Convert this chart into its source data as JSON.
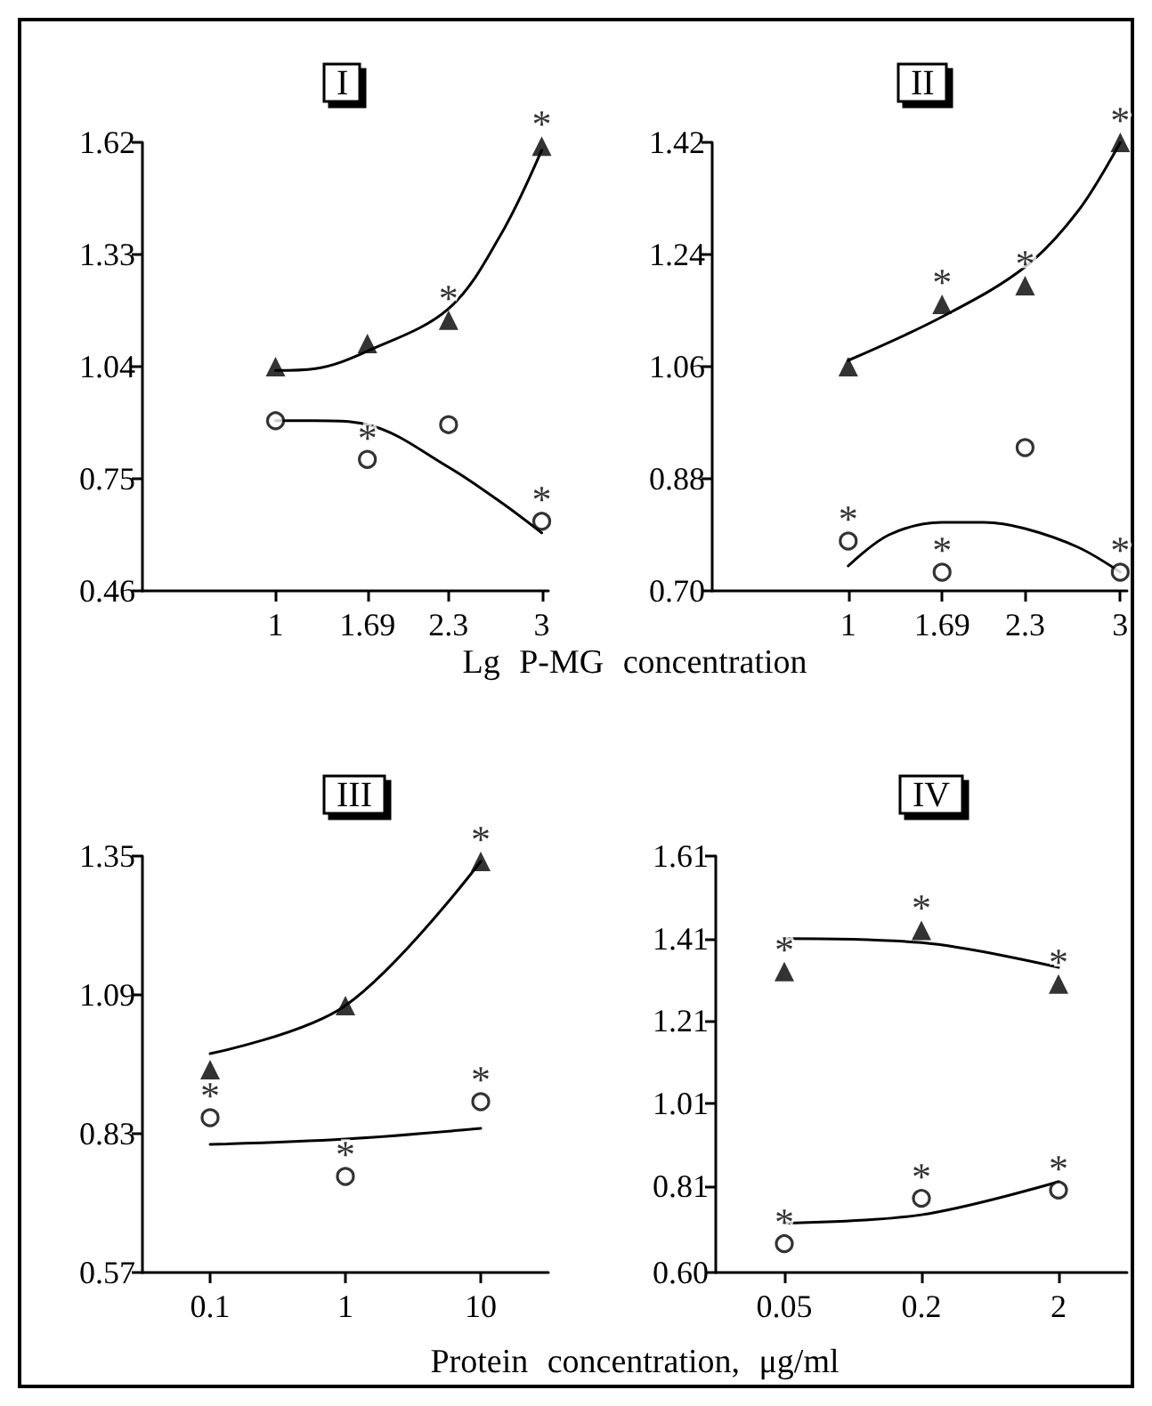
{
  "chart_data": [
    {
      "type": "scatter",
      "title": "I",
      "xlabel": "Lg P-MG concentration",
      "xlim": [
        0,
        3.05
      ],
      "xticks": [
        1,
        1.69,
        2.3,
        3
      ],
      "ylim": [
        0.46,
        1.62
      ],
      "yticks": [
        0.46,
        0.75,
        1.04,
        1.33,
        1.62
      ],
      "grid": false,
      "series": [
        {
          "type": "scatter",
          "marker": "triangle",
          "color": "#000000",
          "x": [
            1,
            1.69,
            2.3,
            3
          ],
          "values": [
            1.04,
            1.1,
            1.16,
            1.61
          ],
          "value_labels": [
            null,
            null,
            "*",
            "*"
          ]
        },
        {
          "type": "scatter",
          "marker": "circle",
          "color": "#000000",
          "x": [
            1,
            1.69,
            2.3,
            3
          ],
          "values": [
            0.9,
            0.8,
            0.89,
            0.64
          ],
          "value_labels": [
            null,
            "*",
            null,
            "*"
          ]
        },
        {
          "type": "line",
          "marker": "none",
          "color": "#000000",
          "x": [
            1,
            1.3,
            1.69,
            2.3,
            2.69,
            3
          ],
          "values": [
            1.03,
            1.035,
            1.08,
            1.19,
            1.38,
            1.6
          ]
        },
        {
          "type": "line",
          "marker": "none",
          "color": "#000000",
          "x": [
            1,
            1.3,
            1.69,
            2.3,
            2.69,
            3
          ],
          "values": [
            0.9,
            0.9,
            0.89,
            0.78,
            0.69,
            0.61
          ]
        }
      ]
    },
    {
      "type": "scatter",
      "title": "II",
      "xlim": [
        0,
        3.05
      ],
      "xticks": [
        1,
        1.69,
        2.3,
        3
      ],
      "ylim": [
        0.7,
        1.42
      ],
      "yticks": [
        {
          "value": 0.7,
          "label": "0.70"
        },
        0.88,
        1.06,
        1.24,
        1.42
      ],
      "grid": false,
      "series": [
        {
          "type": "scatter",
          "marker": "triangle",
          "color": "#000000",
          "x": [
            1,
            1.69,
            2.3,
            3
          ],
          "values": [
            1.06,
            1.16,
            1.19,
            1.42
          ],
          "value_labels": [
            null,
            "*",
            "*",
            "*"
          ]
        },
        {
          "type": "scatter",
          "marker": "circle",
          "color": "#000000",
          "x": [
            1,
            1.69,
            2.3,
            3
          ],
          "values": [
            0.78,
            0.73,
            0.93,
            0.73
          ],
          "value_labels": [
            "*",
            "*",
            null,
            "*"
          ]
        },
        {
          "type": "line",
          "marker": "none",
          "color": "#000000",
          "x": [
            1,
            1.69,
            2.3,
            2.69,
            3
          ],
          "values": [
            1.07,
            1.14,
            1.22,
            1.31,
            1.42
          ]
        },
        {
          "type": "line",
          "marker": "none",
          "color": "#000000",
          "x": [
            1,
            1.3,
            1.69,
            2,
            2.3,
            2.69,
            3
          ],
          "values": [
            0.74,
            0.79,
            0.81,
            0.81,
            0.8,
            0.77,
            0.73
          ]
        }
      ]
    },
    {
      "type": "scatter",
      "title": "III",
      "xlabel": "Protein concentration, μg/ml",
      "categories": [
        "0.1",
        "1",
        "10"
      ],
      "ylim": [
        0.57,
        1.35
      ],
      "yticks": [
        0.57,
        0.83,
        1.09,
        1.35
      ],
      "grid": false,
      "series": [
        {
          "type": "scatter",
          "marker": "triangle",
          "color": "#000000",
          "values": [
            0.95,
            1.07,
            1.34
          ],
          "value_labels": [
            null,
            null,
            "*"
          ]
        },
        {
          "type": "scatter",
          "marker": "circle",
          "color": "#000000",
          "values": [
            0.86,
            0.75,
            0.89
          ],
          "value_labels": [
            "*",
            "*",
            "*"
          ]
        },
        {
          "type": "line",
          "marker": "none",
          "color": "#000000",
          "values": [
            0.98,
            1.07,
            1.34
          ]
        },
        {
          "type": "line",
          "marker": "none",
          "color": "#000000",
          "values": [
            0.81,
            0.82,
            0.84
          ]
        }
      ]
    },
    {
      "type": "scatter",
      "title": "IV",
      "categories": [
        "0.05",
        "0.2",
        "2"
      ],
      "ylim": [
        0.6,
        1.61
      ],
      "yticks": [
        {
          "value": 0.6,
          "label": "0.60"
        },
        0.81,
        1.01,
        1.21,
        1.41,
        1.61
      ],
      "grid": false,
      "series": [
        {
          "type": "scatter",
          "marker": "triangle",
          "color": "#000000",
          "values": [
            1.33,
            1.43,
            1.3
          ],
          "value_labels": [
            "*",
            "*",
            "*"
          ]
        },
        {
          "type": "scatter",
          "marker": "circle",
          "color": "#000000",
          "values": [
            0.67,
            0.78,
            0.8
          ],
          "value_labels": [
            "*",
            "*",
            "*"
          ]
        },
        {
          "type": "line",
          "marker": "none",
          "color": "#000000",
          "values": [
            1.41,
            1.4,
            1.34
          ]
        },
        {
          "type": "line",
          "marker": "none",
          "color": "#000000",
          "values": [
            0.72,
            0.74,
            0.82
          ]
        }
      ]
    }
  ]
}
